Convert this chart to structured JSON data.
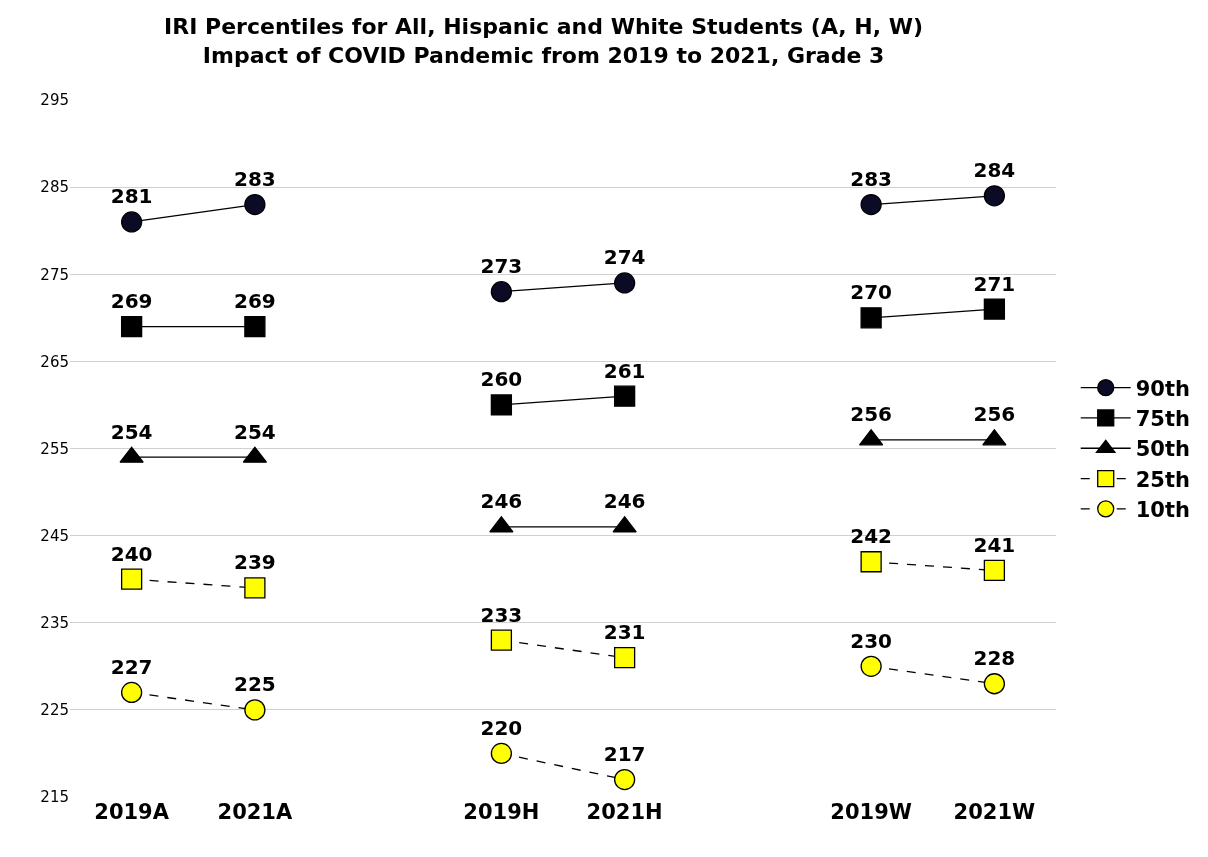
{
  "chart_data": {
    "type": "line",
    "title": "IRI Percentiles for All, Hispanic and White Students (A, H, W)\nImpact of COVID Pandemic from 2019 to 2021, Grade 3",
    "categories": [
      "2019A",
      "2021A",
      null,
      "2019H",
      "2021H",
      null,
      "2019W",
      "2021W"
    ],
    "series": [
      {
        "name": "90th",
        "color": "#0b0b26",
        "marker": "circle",
        "line_style": "solid",
        "values": [
          281,
          283,
          null,
          273,
          274,
          null,
          283,
          284
        ]
      },
      {
        "name": "75th",
        "color": "#000000",
        "marker": "square",
        "line_style": "solid",
        "values": [
          269,
          269,
          null,
          260,
          261,
          null,
          270,
          271
        ]
      },
      {
        "name": "50th",
        "color": "#000000",
        "marker": "triangle",
        "line_style": "solid",
        "values": [
          254,
          254,
          null,
          246,
          246,
          null,
          256,
          256
        ]
      },
      {
        "name": "25th",
        "color": "#ffff00",
        "marker": "square",
        "line_style": "dashed",
        "values": [
          240,
          239,
          null,
          233,
          231,
          null,
          242,
          241
        ]
      },
      {
        "name": "10th",
        "color": "#ffff00",
        "marker": "circle",
        "line_style": "dashed",
        "values": [
          227,
          225,
          null,
          220,
          217,
          null,
          230,
          228
        ]
      }
    ],
    "ylim": [
      215,
      295
    ],
    "yticks": [
      215,
      225,
      235,
      245,
      255,
      265,
      275,
      285,
      295
    ],
    "grid": "y",
    "legend": "right",
    "data_labels": true
  }
}
